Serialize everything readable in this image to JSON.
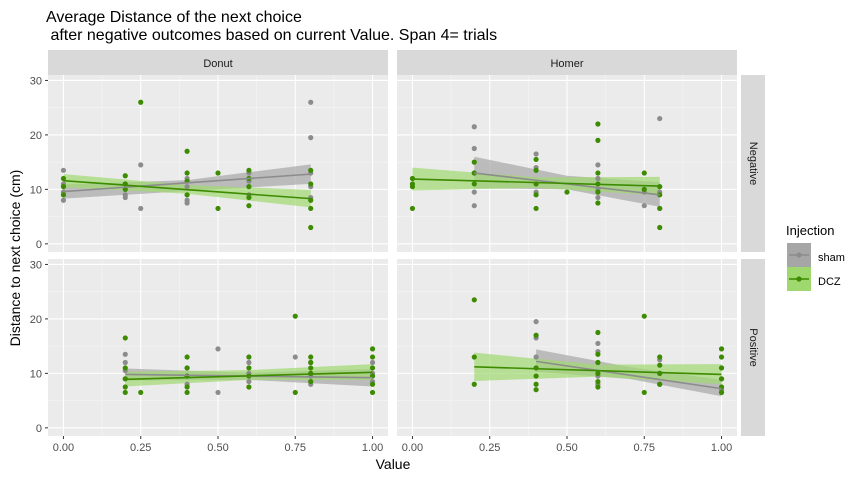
{
  "chart_data": {
    "type": "scatter",
    "title_lines": [
      "Average Distance of the next choice",
      " after negative outcomes based on current Value. Span 4= trials"
    ],
    "xlabel": "Value",
    "ylabel": "Distance to next choice (cm)",
    "xlim": [
      -0.05,
      1.05
    ],
    "ylim": [
      -1.5,
      31
    ],
    "x_ticks": [
      0,
      0.25,
      0.5,
      0.75,
      1
    ],
    "x_tick_labels": [
      "0.00",
      "0.25",
      "0.50",
      "0.75",
      "1.00"
    ],
    "y_ticks": [
      0,
      10,
      20,
      30
    ],
    "y_tick_labels": [
      "0",
      "10",
      "20",
      "30"
    ],
    "grid": true,
    "legend": {
      "title": "Injection",
      "placement": "right",
      "entries": [
        {
          "name": "sham",
          "color": "#8c8c8c",
          "band": "#a6a6a6"
        },
        {
          "name": "DCZ",
          "color": "#3d8b00",
          "band": "#9fd86f"
        }
      ]
    },
    "col_facets": [
      "Donut",
      "Homer"
    ],
    "row_facets": [
      "Negative",
      "Positive"
    ],
    "panels": [
      {
        "col": "Donut",
        "row": "Negative",
        "series": [
          {
            "name": "sham",
            "points": [
              [
                0,
                13.5
              ],
              [
                0,
                11
              ],
              [
                0,
                9.5
              ],
              [
                0,
                8
              ],
              [
                0.2,
                11
              ],
              [
                0.2,
                9
              ],
              [
                0.2,
                8.5
              ],
              [
                0.25,
                14.5
              ],
              [
                0.25,
                6.5
              ],
              [
                0.4,
                12
              ],
              [
                0.4,
                10.5
              ],
              [
                0.4,
                8
              ],
              [
                0.4,
                7.5
              ],
              [
                0.6,
                13
              ],
              [
                0.6,
                11.5
              ],
              [
                0.6,
                9
              ],
              [
                0.8,
                26
              ],
              [
                0.8,
                19.5
              ],
              [
                0.8,
                13
              ],
              [
                0.8,
                10.5
              ],
              [
                0.8,
                8.5
              ]
            ],
            "fit": [
              [
                0,
                9.6
              ],
              [
                0.8,
                12.8
              ]
            ],
            "ci": [
              [
                0,
                8.3,
                10.9
              ],
              [
                0.4,
                9.7,
                11.7
              ],
              [
                0.8,
                11.0,
                14.6
              ]
            ]
          },
          {
            "name": "DCZ",
            "points": [
              [
                0,
                12
              ],
              [
                0,
                10.5
              ],
              [
                0,
                9
              ],
              [
                0.2,
                12.5
              ],
              [
                0.2,
                11
              ],
              [
                0.2,
                10
              ],
              [
                0.25,
                26
              ],
              [
                0.4,
                17
              ],
              [
                0.4,
                13
              ],
              [
                0.4,
                11.5
              ],
              [
                0.4,
                9
              ],
              [
                0.5,
                13
              ],
              [
                0.5,
                6.5
              ],
              [
                0.6,
                13.5
              ],
              [
                0.6,
                12
              ],
              [
                0.6,
                10.5
              ],
              [
                0.6,
                8.5
              ],
              [
                0.6,
                7
              ],
              [
                0.8,
                13.5
              ],
              [
                0.8,
                11
              ],
              [
                0.8,
                8
              ],
              [
                0.8,
                6.5
              ],
              [
                0.8,
                3
              ]
            ],
            "fit": [
              [
                0,
                11.6
              ],
              [
                0.8,
                8.3
              ]
            ],
            "ci": [
              [
                0,
                10.4,
                12.8
              ],
              [
                0.4,
                9.2,
                10.8
              ],
              [
                0.8,
                6.7,
                9.9
              ]
            ]
          }
        ]
      },
      {
        "col": "Homer",
        "row": "Negative",
        "series": [
          {
            "name": "sham",
            "points": [
              [
                0.2,
                21.5
              ],
              [
                0.2,
                17.5
              ],
              [
                0.2,
                13
              ],
              [
                0.2,
                9.5
              ],
              [
                0.2,
                7
              ],
              [
                0.4,
                16.5
              ],
              [
                0.4,
                14
              ],
              [
                0.4,
                11
              ],
              [
                0.4,
                9.5
              ],
              [
                0.6,
                14.5
              ],
              [
                0.6,
                12
              ],
              [
                0.6,
                10
              ],
              [
                0.6,
                8.5
              ],
              [
                0.75,
                9.5
              ],
              [
                0.75,
                7
              ],
              [
                0.8,
                23
              ],
              [
                0.8,
                9.5
              ],
              [
                0.8,
                6.5
              ]
            ],
            "fit": [
              [
                0.2,
                13.0
              ],
              [
                0.8,
                9.0
              ]
            ],
            "ci": [
              [
                0.2,
                10.2,
                16.0
              ],
              [
                0.5,
                10.0,
                12.5
              ],
              [
                0.8,
                6.8,
                11.3
              ]
            ]
          },
          {
            "name": "DCZ",
            "points": [
              [
                0,
                12
              ],
              [
                0,
                11
              ],
              [
                0,
                10.5
              ],
              [
                0,
                6.5
              ],
              [
                0.2,
                15
              ],
              [
                0.2,
                13
              ],
              [
                0.2,
                11
              ],
              [
                0.4,
                15.5
              ],
              [
                0.4,
                13.5
              ],
              [
                0.4,
                11
              ],
              [
                0.4,
                9
              ],
              [
                0.4,
                6.5
              ],
              [
                0.5,
                9.5
              ],
              [
                0.6,
                22
              ],
              [
                0.6,
                19
              ],
              [
                0.6,
                13
              ],
              [
                0.6,
                11
              ],
              [
                0.6,
                9.5
              ],
              [
                0.6,
                7.5
              ],
              [
                0.75,
                13
              ],
              [
                0.75,
                10
              ],
              [
                0.8,
                10.5
              ],
              [
                0.8,
                9
              ],
              [
                0.8,
                6.5
              ],
              [
                0.8,
                3
              ]
            ],
            "fit": [
              [
                0,
                11.9
              ],
              [
                0.8,
                10.6
              ]
            ],
            "ci": [
              [
                0,
                9.8,
                14.0
              ],
              [
                0.4,
                10.3,
                12.2
              ],
              [
                0.8,
                8.9,
                12.3
              ]
            ]
          }
        ]
      },
      {
        "col": "Donut",
        "row": "Positive",
        "series": [
          {
            "name": "sham",
            "points": [
              [
                0.2,
                13.5
              ],
              [
                0.2,
                12
              ],
              [
                0.2,
                10.5
              ],
              [
                0.2,
                9
              ],
              [
                0.4,
                11
              ],
              [
                0.4,
                9.5
              ],
              [
                0.4,
                8
              ],
              [
                0.5,
                14.5
              ],
              [
                0.5,
                6.5
              ],
              [
                0.6,
                12
              ],
              [
                0.6,
                10
              ],
              [
                0.6,
                8.5
              ],
              [
                0.75,
                13
              ],
              [
                0.8,
                12
              ],
              [
                0.8,
                9.5
              ],
              [
                0.8,
                8
              ],
              [
                1,
                12
              ],
              [
                1,
                10
              ],
              [
                1,
                8.5
              ]
            ],
            "fit": [
              [
                0.2,
                9.8
              ],
              [
                1,
                9.2
              ]
            ],
            "ci": [
              [
                0.2,
                8.7,
                10.9
              ],
              [
                0.6,
                8.8,
                10.1
              ],
              [
                1,
                7.6,
                10.8
              ]
            ]
          },
          {
            "name": "DCZ",
            "points": [
              [
                0.2,
                16.5
              ],
              [
                0.2,
                11
              ],
              [
                0.2,
                9
              ],
              [
                0.2,
                7.5
              ],
              [
                0.2,
                6.5
              ],
              [
                0.25,
                6.5
              ],
              [
                0.4,
                13
              ],
              [
                0.4,
                11
              ],
              [
                0.4,
                9.5
              ],
              [
                0.4,
                7.5
              ],
              [
                0.4,
                6.5
              ],
              [
                0.6,
                13
              ],
              [
                0.6,
                11
              ],
              [
                0.6,
                9.5
              ],
              [
                0.6,
                7.5
              ],
              [
                0.75,
                20.5
              ],
              [
                0.75,
                6.5
              ],
              [
                0.8,
                13
              ],
              [
                0.8,
                12
              ],
              [
                0.8,
                11
              ],
              [
                0.8,
                10
              ],
              [
                0.8,
                8.5
              ],
              [
                1,
                14.5
              ],
              [
                1,
                13
              ],
              [
                1,
                11
              ],
              [
                1,
                9.5
              ],
              [
                1,
                8
              ],
              [
                1,
                6.5
              ]
            ],
            "fit": [
              [
                0.2,
                8.9
              ],
              [
                1,
                10.2
              ]
            ],
            "ci": [
              [
                0.2,
                7.6,
                10.3
              ],
              [
                0.6,
                8.8,
                10.6
              ],
              [
                1,
                8.8,
                11.7
              ]
            ]
          }
        ]
      },
      {
        "col": "Homer",
        "row": "Positive",
        "series": [
          {
            "name": "sham",
            "points": [
              [
                0.4,
                19.5
              ],
              [
                0.4,
                16.5
              ],
              [
                0.4,
                13
              ],
              [
                0.4,
                11
              ],
              [
                0.6,
                15.5
              ],
              [
                0.6,
                14
              ],
              [
                0.6,
                12
              ],
              [
                0.6,
                9.5
              ],
              [
                0.6,
                8
              ],
              [
                0.8,
                12.5
              ],
              [
                0.8,
                10
              ],
              [
                0.8,
                8
              ],
              [
                1,
                11
              ],
              [
                1,
                9
              ],
              [
                1,
                7
              ],
              [
                1,
                6.5
              ]
            ],
            "fit": [
              [
                0.4,
                12.2
              ],
              [
                1,
                7.2
              ]
            ],
            "ci": [
              [
                0.4,
                10.3,
                14.4
              ],
              [
                0.7,
                9.0,
                11.2
              ],
              [
                1,
                5.8,
                8.8
              ]
            ]
          },
          {
            "name": "DCZ",
            "points": [
              [
                0.2,
                23.5
              ],
              [
                0.2,
                13
              ],
              [
                0.2,
                8
              ],
              [
                0.4,
                17
              ],
              [
                0.4,
                11
              ],
              [
                0.4,
                9.5
              ],
              [
                0.4,
                8
              ],
              [
                0.4,
                7
              ],
              [
                0.6,
                17.5
              ],
              [
                0.6,
                13.5
              ],
              [
                0.6,
                12
              ],
              [
                0.6,
                10
              ],
              [
                0.6,
                8.5
              ],
              [
                0.6,
                7.5
              ],
              [
                0.75,
                20.5
              ],
              [
                0.75,
                6.5
              ],
              [
                0.8,
                13
              ],
              [
                0.8,
                11.5
              ],
              [
                0.8,
                10
              ],
              [
                0.8,
                8
              ],
              [
                1,
                14.5
              ],
              [
                1,
                13
              ],
              [
                1,
                11
              ],
              [
                1,
                9
              ],
              [
                1,
                7.5
              ],
              [
                1,
                6.5
              ]
            ],
            "fit": [
              [
                0.2,
                11.2
              ],
              [
                1,
                9.8
              ]
            ],
            "ci": [
              [
                0.2,
                8.6,
                13.8
              ],
              [
                0.6,
                9.4,
                11.6
              ],
              [
                1,
                8.0,
                11.7
              ]
            ]
          }
        ]
      }
    ]
  }
}
